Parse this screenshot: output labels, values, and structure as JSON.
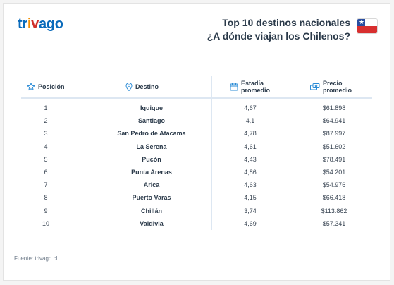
{
  "brand": {
    "letters": [
      "t",
      "r",
      "i",
      "v",
      "a",
      "g",
      "o"
    ],
    "colors": [
      "#0a6bbb",
      "#0a6bbb",
      "#f48f00",
      "#d12f2a",
      "#0a6bbb",
      "#0a6bbb",
      "#0a6bbb"
    ]
  },
  "header": {
    "title_line1": "Top 10 destinos nacionales",
    "title_line2": "¿A dónde viajan los Chilenos?",
    "flag_icon": "chile-flag-icon"
  },
  "table": {
    "columns": {
      "position": "Posición",
      "destination": "Destino",
      "stay_line1": "Estadía",
      "stay_line2": "promedio",
      "price_line1": "Precio",
      "price_line2": "promedio"
    },
    "rows": [
      {
        "pos": "1",
        "dest": "Iquique",
        "stay": "4,67",
        "price": "$61.898"
      },
      {
        "pos": "2",
        "dest": "Santiago",
        "stay": "4,1",
        "price": "$64.941"
      },
      {
        "pos": "3",
        "dest": "San Pedro de Atacama",
        "stay": "4,78",
        "price": "$87.997"
      },
      {
        "pos": "4",
        "dest": "La Serena",
        "stay": "4,61",
        "price": "$51.602"
      },
      {
        "pos": "5",
        "dest": "Pucón",
        "stay": "4,43",
        "price": "$78.491"
      },
      {
        "pos": "6",
        "dest": "Punta Arenas",
        "stay": "4,86",
        "price": "$54.201"
      },
      {
        "pos": "7",
        "dest": "Arica",
        "stay": "4,63",
        "price": "$54.976"
      },
      {
        "pos": "8",
        "dest": "Puerto Varas",
        "stay": "4,15",
        "price": "$66.418"
      },
      {
        "pos": "9",
        "dest": "Chillán",
        "stay": "3,74",
        "price": "$113.862"
      },
      {
        "pos": "10",
        "dest": "Valdivia",
        "stay": "4,69",
        "price": "$57.341"
      }
    ]
  },
  "footer": {
    "source": "Fuente: trivago.cl"
  }
}
